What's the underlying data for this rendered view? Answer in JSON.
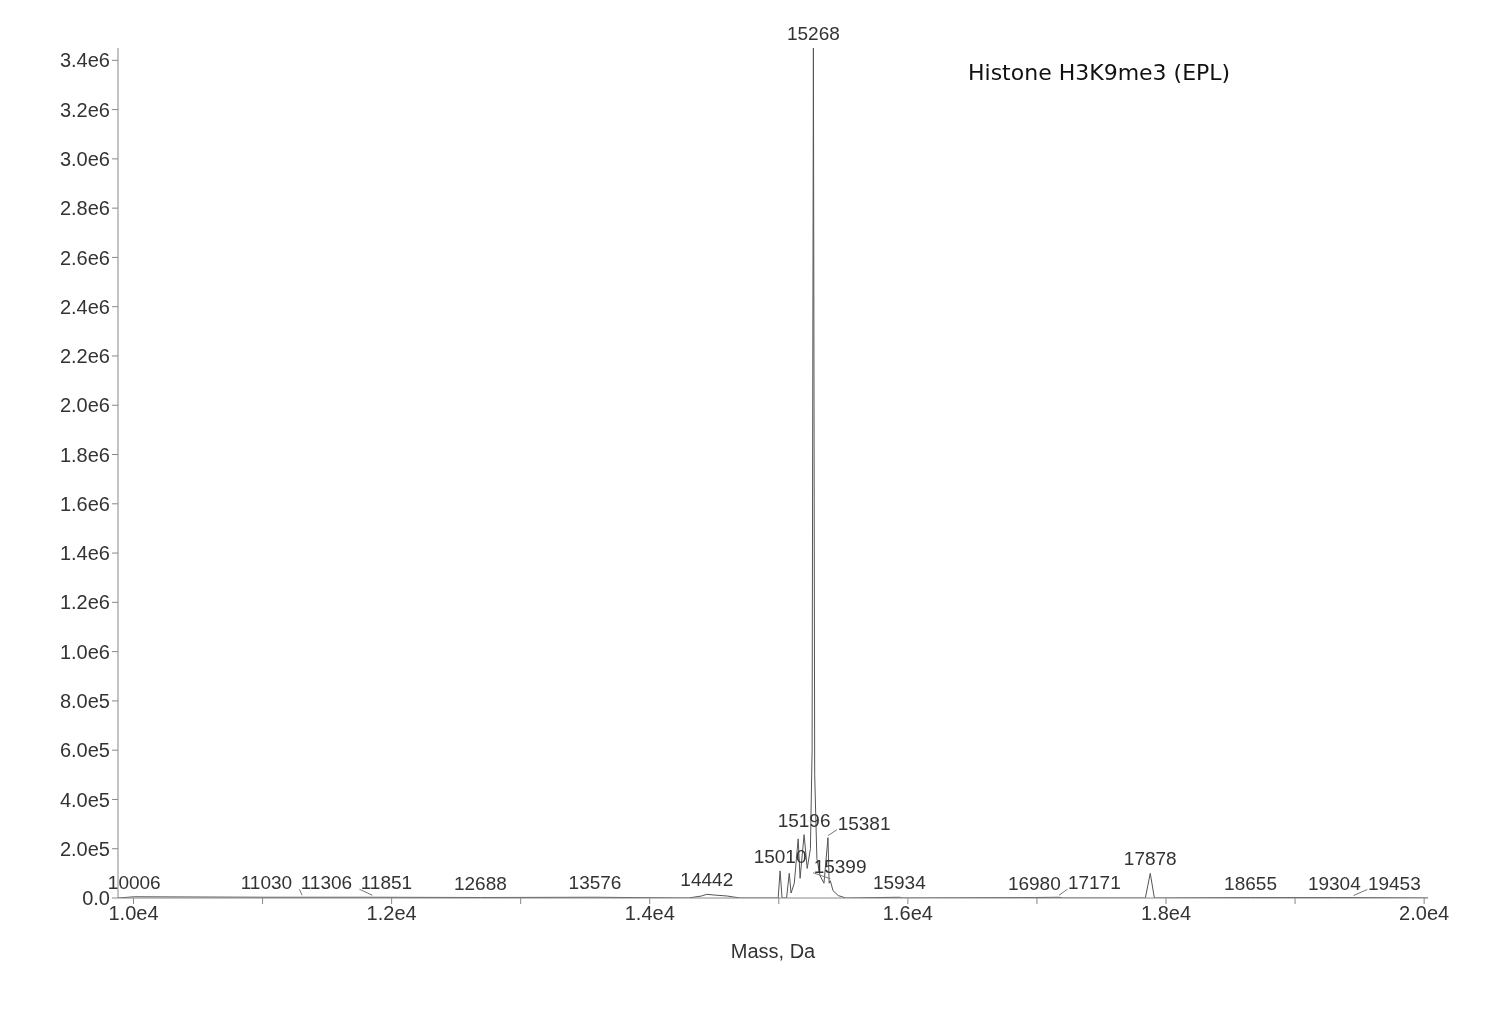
{
  "chart_data": {
    "type": "line",
    "title": "Histone H3K9me3 (EPL)",
    "xlabel": "Mass, Da",
    "xlim": [
      9880,
      20030
    ],
    "ylim": [
      0,
      3450000
    ],
    "xticks": [
      {
        "value": 10000,
        "label": "1.0e4"
      },
      {
        "value": 11000,
        "label": null
      },
      {
        "value": 12000,
        "label": "1.2e4"
      },
      {
        "value": 13000,
        "label": null
      },
      {
        "value": 14000,
        "label": "1.4e4"
      },
      {
        "value": 15000,
        "label": null
      },
      {
        "value": 16000,
        "label": "1.6e4"
      },
      {
        "value": 17000,
        "label": null
      },
      {
        "value": 18000,
        "label": "1.8e4"
      },
      {
        "value": 19000,
        "label": null
      },
      {
        "value": 20000,
        "label": "2.0e4"
      }
    ],
    "yticks": [
      {
        "value": 0,
        "label": "0.0"
      },
      {
        "value": 200000,
        "label": "2.0e5"
      },
      {
        "value": 400000,
        "label": "4.0e5"
      },
      {
        "value": 600000,
        "label": "6.0e5"
      },
      {
        "value": 800000,
        "label": "8.0e5"
      },
      {
        "value": 1000000,
        "label": "1.0e6"
      },
      {
        "value": 1200000,
        "label": "1.2e6"
      },
      {
        "value": 1400000,
        "label": "1.4e6"
      },
      {
        "value": 1600000,
        "label": "1.6e6"
      },
      {
        "value": 1800000,
        "label": "1.8e6"
      },
      {
        "value": 2000000,
        "label": "2.0e6"
      },
      {
        "value": 2200000,
        "label": "2.2e6"
      },
      {
        "value": 2400000,
        "label": "2.4e6"
      },
      {
        "value": 2600000,
        "label": "2.6e6"
      },
      {
        "value": 2800000,
        "label": "2.8e6"
      },
      {
        "value": 3000000,
        "label": "3.0e6"
      },
      {
        "value": 3200000,
        "label": "3.2e6"
      },
      {
        "value": 3400000,
        "label": "3.4e6"
      }
    ],
    "grid": false,
    "legend": false,
    "marker": "none",
    "line_style": "solid",
    "series": [
      {
        "color": "#555555",
        "x": [
          9884,
          10006,
          11030,
          11306,
          11851,
          12688,
          13576,
          14300,
          14400,
          14442,
          14500,
          14600,
          14700,
          14995,
          15010,
          15025,
          15060,
          15081,
          15095,
          15120,
          15150,
          15165,
          15196,
          15220,
          15245,
          15258,
          15268,
          15278,
          15295,
          15320,
          15350,
          15381,
          15390,
          15399,
          15420,
          15460,
          15520,
          15934,
          15960,
          16980,
          17171,
          17200,
          17840,
          17878,
          17910,
          18655,
          19304,
          19453,
          20030
        ],
        "values": [
          0,
          5000,
          3000,
          3000,
          3000,
          2000,
          3000,
          0,
          8000,
          15000,
          12000,
          8000,
          0,
          0,
          110000,
          0,
          0,
          100000,
          20000,
          60000,
          240000,
          80000,
          257000,
          120000,
          200000,
          600000,
          3450000,
          500000,
          160000,
          90000,
          60000,
          245000,
          60000,
          70000,
          30000,
          10000,
          0,
          3000,
          0,
          2000,
          3000,
          0,
          0,
          100000,
          0,
          2000,
          2000,
          2000,
          0
        ]
      }
    ],
    "annotations": [
      {
        "text": "15268",
        "x": 15268,
        "y": 3450000
      },
      {
        "text": "10006",
        "x": 10006,
        "y": 5000
      },
      {
        "text": "11030",
        "x": 11030,
        "y": 3000
      },
      {
        "text": "11306",
        "x": 11306,
        "y": 3000
      },
      {
        "text": "11851",
        "x": 11851,
        "y": 3000
      },
      {
        "text": "12688",
        "x": 12688,
        "y": 2000
      },
      {
        "text": "13576",
        "x": 13576,
        "y": 3000
      },
      {
        "text": "14442",
        "x": 14442,
        "y": 15000
      },
      {
        "text": "15010",
        "x": 15010,
        "y": 110000
      },
      {
        "text": "15196",
        "x": 15196,
        "y": 257000
      },
      {
        "text": "15381",
        "x": 15381,
        "y": 245000
      },
      {
        "text": "15399",
        "x": 15399,
        "y": 70000
      },
      {
        "text": "15934",
        "x": 15934,
        "y": 3000
      },
      {
        "text": "16980",
        "x": 16980,
        "y": 2000
      },
      {
        "text": "17171",
        "x": 17171,
        "y": 3000
      },
      {
        "text": "17878",
        "x": 17878,
        "y": 100000
      },
      {
        "text": "18655",
        "x": 18655,
        "y": 2000
      },
      {
        "text": "19304",
        "x": 19304,
        "y": 2000
      },
      {
        "text": "19453",
        "x": 19453,
        "y": 2000
      }
    ]
  }
}
